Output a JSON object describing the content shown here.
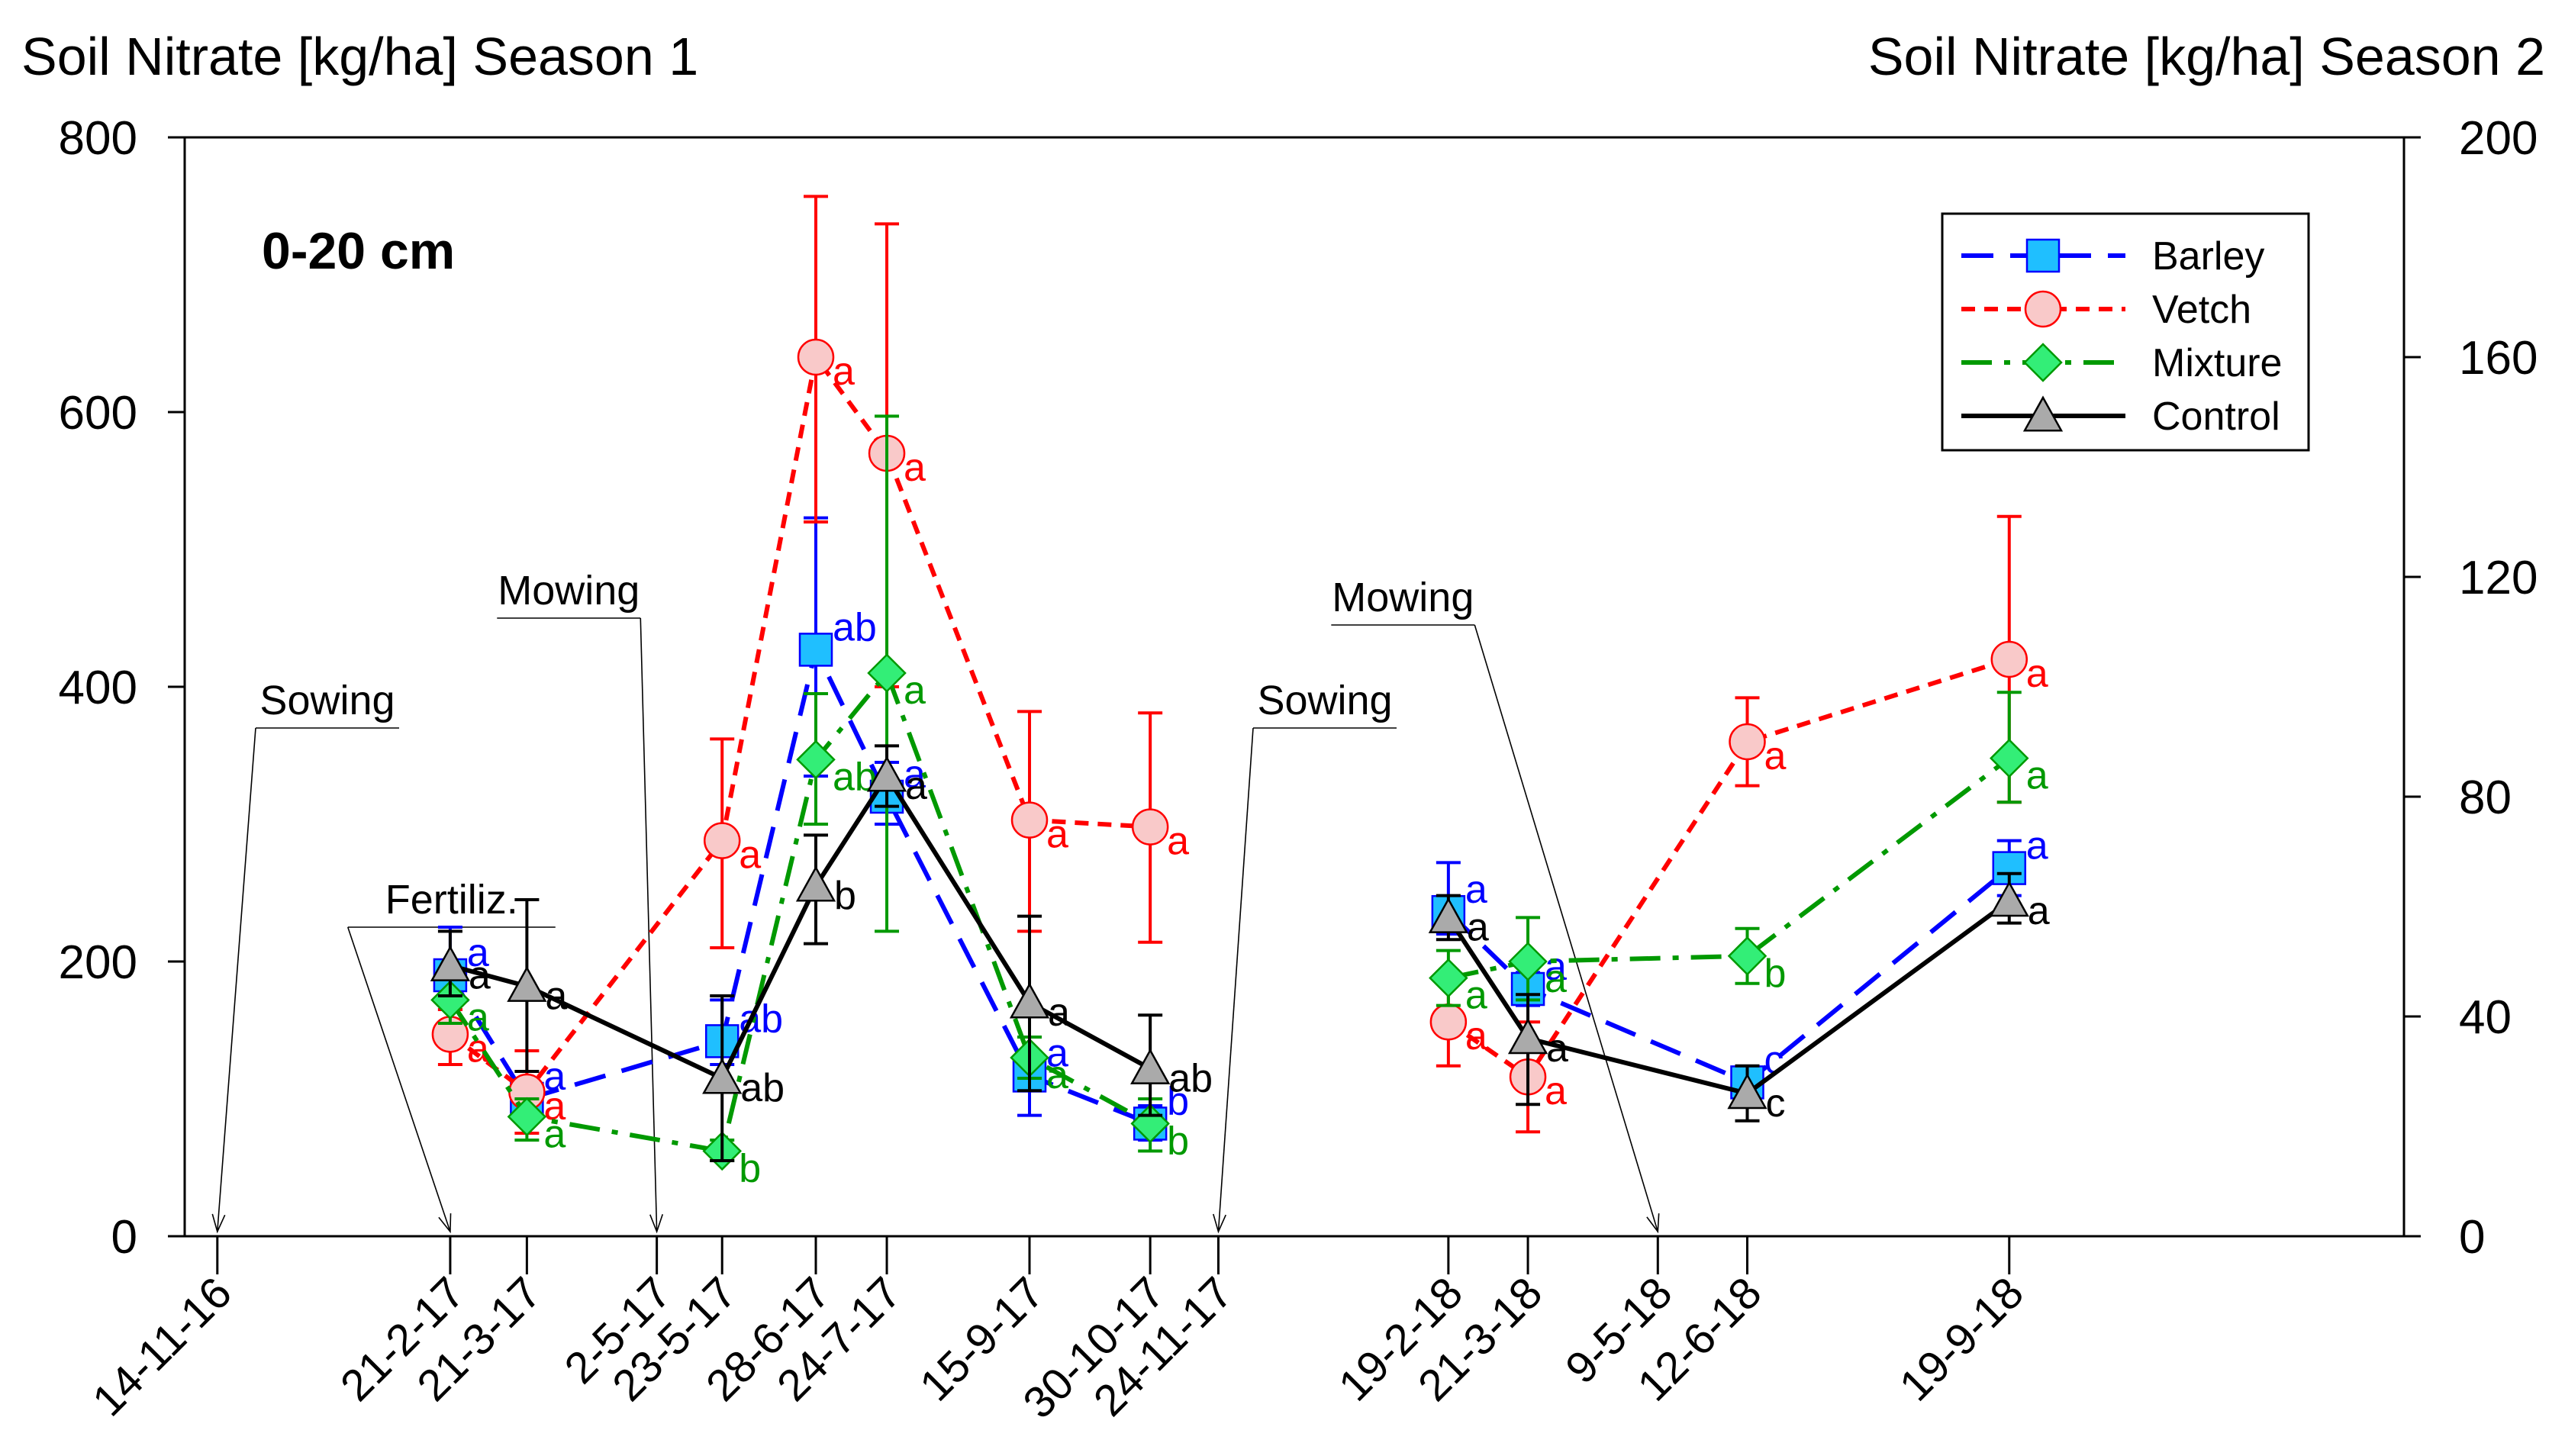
{
  "chart_data": {
    "type": "line",
    "title_left": "Soil Nitrate [kg/ha] Season 1",
    "title_right": "Soil Nitrate [kg/ha] Season 2",
    "depth_label": "0-20 cm",
    "y_left": {
      "range": [
        0,
        800
      ],
      "ticks": [
        "0",
        "200",
        "400",
        "600",
        "800"
      ],
      "tick_values": [
        0,
        200,
        400,
        600,
        800
      ]
    },
    "y_right": {
      "range": [
        0,
        200
      ],
      "ticks": [
        "0",
        "40",
        "80",
        "120",
        "160",
        "200"
      ],
      "tick_values": [
        0,
        40,
        80,
        120,
        160,
        200
      ]
    },
    "x_range": [
      -46,
      3080
    ],
    "x_ticks": [
      {
        "label": "14-11-16",
        "day": 0
      },
      {
        "label": "21-2-17",
        "day": 328
      },
      {
        "label": "21-3-17",
        "day": 436
      },
      {
        "label": "2-5-17",
        "day": 619
      },
      {
        "label": "23-5-17",
        "day": 711
      },
      {
        "label": "28-6-17",
        "day": 843
      },
      {
        "label": "24-7-17",
        "day": 943
      },
      {
        "label": "15-9-17",
        "day": 1144
      },
      {
        "label": "30-10-17",
        "day": 1314
      },
      {
        "label": "24-11-17",
        "day": 1410
      },
      {
        "label": "19-2-18",
        "day": 1734
      },
      {
        "label": "21-3-18",
        "day": 1846
      },
      {
        "label": "9-5-18",
        "day": 2029
      },
      {
        "label": "12-6-18",
        "day": 2155
      },
      {
        "label": "19-9-18",
        "day": 2524
      }
    ],
    "annotations": [
      {
        "label": "Sowing",
        "target_day": 0,
        "label_day": 155,
        "label_y": 370
      },
      {
        "label": "Fertiliz.",
        "target_day": 328,
        "label_day": 330,
        "label_y": 225
      },
      {
        "label": "Mowing",
        "target_day": 619,
        "label_day": 495,
        "label_y": 450
      },
      {
        "label": "Sowing",
        "target_day": 1410,
        "label_day": 1560,
        "label_y": 370
      },
      {
        "label": "Mowing",
        "target_day": 2029,
        "label_day": 1670,
        "label_y": 445
      }
    ],
    "legend": {
      "position": "top-right",
      "entries": [
        "Barley",
        "Vetch",
        "Mixture",
        "Control"
      ]
    },
    "series": [
      {
        "name": "Barley",
        "color": "#0000ff",
        "marker": "square",
        "marker_fill": "#1fbfff",
        "season1": [
          {
            "day": 328,
            "value": 190,
            "err_up": 225,
            "err_low": 165,
            "letter": "a"
          },
          {
            "day": 436,
            "value": 100,
            "err_up": 115,
            "err_low": 85,
            "letter": "a"
          },
          {
            "day": 711,
            "value": 142,
            "err_up": 172,
            "err_low": 125,
            "letter": "ab"
          },
          {
            "day": 843,
            "value": 427,
            "err_up": 523,
            "err_low": 335,
            "letter": "ab"
          },
          {
            "day": 943,
            "value": 320,
            "err_up": 345,
            "err_low": 300,
            "letter": "a"
          },
          {
            "day": 1144,
            "value": 117,
            "err_up": 145,
            "err_low": 88,
            "letter": "a"
          },
          {
            "day": 1314,
            "value": 82,
            "err_up": 95,
            "err_low": 70,
            "letter": "b"
          }
        ],
        "season2": [
          {
            "day": 1734,
            "value": 59,
            "err_up": 68,
            "err_low": 55,
            "letter": "a"
          },
          {
            "day": 1846,
            "value": 45,
            "err_up": 48,
            "err_low": 42,
            "letter": "a"
          },
          {
            "day": 2155,
            "value": 28,
            "err_up": 30,
            "err_low": 25,
            "letter": "c"
          },
          {
            "day": 2524,
            "value": 67,
            "err_up": 72,
            "err_low": 62,
            "letter": "a"
          }
        ]
      },
      {
        "name": "Vetch",
        "color": "#ff0000",
        "marker": "circle",
        "marker_fill": "#f9c9c9",
        "season1": [
          {
            "day": 328,
            "value": 147,
            "err_up": 165,
            "err_low": 125,
            "letter": "a"
          },
          {
            "day": 436,
            "value": 105,
            "err_up": 135,
            "err_low": 75,
            "letter": "a"
          },
          {
            "day": 711,
            "value": 288,
            "err_up": 362,
            "err_low": 210,
            "letter": "a"
          },
          {
            "day": 843,
            "value": 640,
            "err_up": 757,
            "err_low": 520,
            "letter": "a"
          },
          {
            "day": 943,
            "value": 570,
            "err_up": 737,
            "err_low": 400,
            "letter": "a"
          },
          {
            "day": 1144,
            "value": 303,
            "err_up": 382,
            "err_low": 222,
            "letter": "a"
          },
          {
            "day": 1314,
            "value": 298,
            "err_up": 381,
            "err_low": 214,
            "letter": "a"
          }
        ],
        "season2": [
          {
            "day": 1734,
            "value": 39,
            "err_up": 47,
            "err_low": 31,
            "letter": "a"
          },
          {
            "day": 1846,
            "value": 29,
            "err_up": 39,
            "err_low": 19,
            "letter": "a"
          },
          {
            "day": 2155,
            "value": 90,
            "err_up": 98,
            "err_low": 82,
            "letter": "a"
          },
          {
            "day": 2524,
            "value": 105,
            "err_up": 131,
            "err_low": 79,
            "letter": "a"
          }
        ]
      },
      {
        "name": "Mixture",
        "color": "#009900",
        "marker": "diamond",
        "marker_fill": "#33ee77",
        "season1": [
          {
            "day": 328,
            "value": 172,
            "err_up": 188,
            "err_low": 155,
            "letter": "a"
          },
          {
            "day": 436,
            "value": 87,
            "err_up": 100,
            "err_low": 70,
            "letter": "a"
          },
          {
            "day": 711,
            "value": 62,
            "err_up": 70,
            "err_low": 55,
            "letter": "b"
          },
          {
            "day": 843,
            "value": 347,
            "err_up": 395,
            "err_low": 300,
            "letter": "ab"
          },
          {
            "day": 943,
            "value": 410,
            "err_up": 597,
            "err_low": 222,
            "letter": "a"
          },
          {
            "day": 1144,
            "value": 130,
            "err_up": 145,
            "err_low": 115,
            "letter": "a"
          },
          {
            "day": 1314,
            "value": 82,
            "err_up": 100,
            "err_low": 62,
            "letter": "b"
          }
        ],
        "season2": [
          {
            "day": 1734,
            "value": 47,
            "err_up": 52,
            "err_low": 42,
            "letter": "a"
          },
          {
            "day": 1846,
            "value": 50,
            "err_up": 58,
            "err_low": 43,
            "letter": "a"
          },
          {
            "day": 2155,
            "value": 51,
            "err_up": 56,
            "err_low": 46,
            "letter": "b"
          },
          {
            "day": 2524,
            "value": 87,
            "err_up": 99,
            "err_low": 79,
            "letter": "a"
          }
        ]
      },
      {
        "name": "Control",
        "color": "#000000",
        "marker": "triangle",
        "marker_fill": "#aaaaaa",
        "season1": [
          {
            "day": 328,
            "value": 197,
            "err_up": 222,
            "err_low": 175,
            "letter": "a"
          },
          {
            "day": 436,
            "value": 182,
            "err_up": 245,
            "err_low": 120,
            "letter": "a"
          },
          {
            "day": 711,
            "value": 115,
            "err_up": 175,
            "err_low": 55,
            "letter": "ab"
          },
          {
            "day": 843,
            "value": 255,
            "err_up": 292,
            "err_low": 213,
            "letter": "b"
          },
          {
            "day": 943,
            "value": 335,
            "err_up": 357,
            "err_low": 313,
            "letter": "a"
          },
          {
            "day": 1144,
            "value": 170,
            "err_up": 233,
            "err_low": 106,
            "letter": "a"
          },
          {
            "day": 1314,
            "value": 122,
            "err_up": 161,
            "err_low": 88,
            "letter": "ab"
          }
        ],
        "season2": [
          {
            "day": 1734,
            "value": 58,
            "err_up": 62,
            "err_low": 54,
            "letter": "a"
          },
          {
            "day": 1846,
            "value": 36,
            "err_up": 44,
            "err_low": 24,
            "letter": "a"
          },
          {
            "day": 2155,
            "value": 26,
            "err_up": 31,
            "err_low": 21,
            "letter": "c"
          },
          {
            "day": 2524,
            "value": 61,
            "err_up": 66,
            "err_low": 57,
            "letter": "a"
          }
        ]
      }
    ]
  }
}
